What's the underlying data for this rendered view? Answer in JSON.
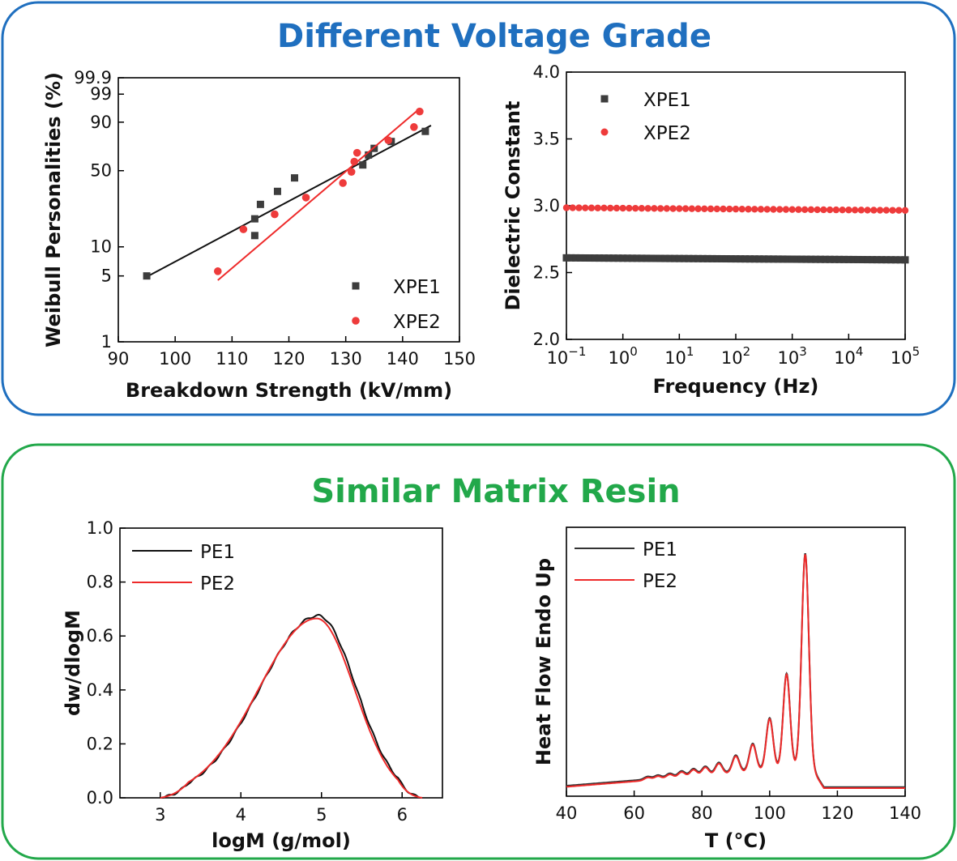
{
  "panels": {
    "top": {
      "title": "Different Voltage Grade",
      "color": "#1f6fbf"
    },
    "bottom": {
      "title": "Similar Matrix Resin",
      "color": "#22a84a"
    }
  },
  "colors": {
    "xpe1": "#3d3d3d",
    "xpe2": "#ee3b3b",
    "pe1": "#111111",
    "pe2": "#ee2a2a"
  },
  "chart_data": [
    {
      "id": "weibull",
      "type": "scatter",
      "xlabel": "Breakdown Strength (kV/mm)",
      "ylabel": "Weibull Personalities (%)",
      "xlim": [
        90,
        150
      ],
      "xticks": [
        90,
        100,
        110,
        120,
        130,
        140,
        150
      ],
      "yscale": "weibull",
      "yticks": [
        1,
        5,
        10,
        50,
        90,
        99,
        99.9
      ],
      "ytick_labels": [
        "1",
        "5",
        "10",
        "50",
        "90",
        "99",
        "99.9"
      ],
      "legend_position": "bottom-right",
      "series": [
        {
          "name": "XPE1",
          "marker": "square",
          "x": [
            95,
            114,
            114,
            115,
            118,
            121,
            133,
            134,
            135,
            138,
            144
          ],
          "y": [
            5,
            13,
            19,
            26,
            34,
            44,
            55,
            64,
            70,
            76,
            84
          ],
          "fit": {
            "x": [
              95,
              145
            ],
            "y": [
              4.9,
              88
            ]
          }
        },
        {
          "name": "XPE2",
          "marker": "circle",
          "x": [
            107.5,
            112,
            117.5,
            123,
            129.5,
            131,
            131.5,
            132,
            137.5,
            142,
            143
          ],
          "y": [
            5.6,
            15,
            21,
            30,
            40,
            49,
            58,
            66,
            77,
            87,
            95
          ],
          "fit": {
            "x": [
              107.5,
              143
            ],
            "y": [
              4.5,
              96
            ]
          }
        }
      ]
    },
    {
      "id": "dielectric",
      "type": "scatter",
      "xlabel": "Frequency (Hz)",
      "ylabel": "Dielectric Constant",
      "xscale": "log",
      "xlim_exp": [
        -1,
        5
      ],
      "xtick_exponents": [
        "-1",
        "0",
        "1",
        "2",
        "3",
        "4",
        "5"
      ],
      "xtick_base": "10",
      "ylim": [
        2.0,
        4.0
      ],
      "yticks": [
        "2.0",
        "2.5",
        "3.0",
        "3.5",
        "4.0"
      ],
      "legend_position": "top-left",
      "series": [
        {
          "name": "XPE1",
          "marker": "square",
          "value_start": 2.61,
          "value_end": 2.595,
          "points_per_decade": 12
        },
        {
          "name": "XPE2",
          "marker": "circle",
          "value_start": 2.985,
          "value_end": 2.965,
          "points_per_decade": 9
        }
      ]
    },
    {
      "id": "mwd",
      "type": "line",
      "xlabel": "logM (g/mol)",
      "ylabel": "dw/dlogM",
      "xlim": [
        2.5,
        6.5
      ],
      "xticks": [
        "3",
        "4",
        "5",
        "6"
      ],
      "ylim": [
        0.0,
        1.0
      ],
      "yticks": [
        "0.0",
        "0.2",
        "0.4",
        "0.6",
        "0.8",
        "1.0"
      ],
      "legend_position": "top-left",
      "series": [
        {
          "name": "PE1",
          "peak_x": 4.96,
          "peak_y": 0.675,
          "sigma_left": 0.72,
          "sigma_right": 0.47,
          "start_x": 3.0,
          "end_x": 6.25
        },
        {
          "name": "PE2",
          "peak_x": 4.94,
          "peak_y": 0.665,
          "sigma_left": 0.72,
          "sigma_right": 0.47,
          "start_x": 3.0,
          "end_x": 6.25
        }
      ]
    },
    {
      "id": "dsc",
      "type": "line",
      "xlabel": "T (°C)",
      "ylabel": "Heat Flow Endo Up",
      "xlim": [
        40,
        140
      ],
      "xticks": [
        "40",
        "60",
        "80",
        "100",
        "120",
        "140"
      ],
      "legend_position": "top-left",
      "baseline": {
        "y40": 0.035,
        "y60": 0.055,
        "y112": 0.11,
        "y140": 0.03
      },
      "peaks": [
        {
          "t": 64,
          "h": 0.01
        },
        {
          "t": 67,
          "h": 0.012
        },
        {
          "t": 70.5,
          "h": 0.015
        },
        {
          "t": 74,
          "h": 0.02
        },
        {
          "t": 77.5,
          "h": 0.025
        },
        {
          "t": 81,
          "h": 0.03
        },
        {
          "t": 85,
          "h": 0.04
        },
        {
          "t": 90,
          "h": 0.062
        },
        {
          "t": 95,
          "h": 0.1
        },
        {
          "t": 100,
          "h": 0.19
        },
        {
          "t": 105,
          "h": 0.35
        },
        {
          "t": 110.5,
          "h": 0.79
        }
      ],
      "series": [
        {
          "name": "PE1",
          "offset": 0.004
        },
        {
          "name": "PE2",
          "offset": 0.0
        }
      ]
    }
  ]
}
